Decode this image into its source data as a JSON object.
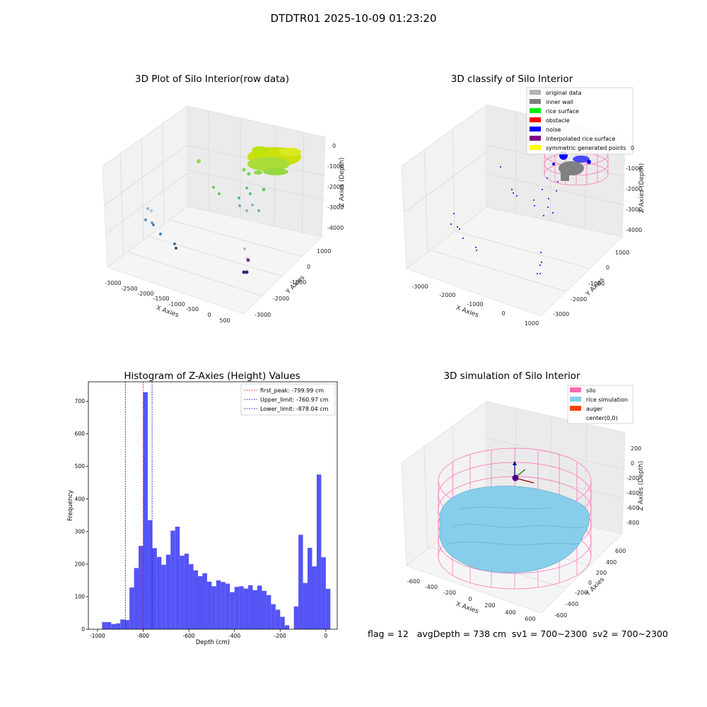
{
  "figure": {
    "title": "DTDTR01 2025-10-09 01:23:20",
    "stats_text": "flag = 12   avgDepth = 738 cm  sv1 = 700~2300  sv2 = 700~2300"
  },
  "panels": {
    "raw": {
      "title": "3D Plot of Silo Interior(row data)",
      "xlabel": "X Axies",
      "ylabel": "Y Axies",
      "zlabel": "Z Axies (Depth)",
      "xticks": [
        "-3000",
        "-2500",
        "-2000",
        "-1500",
        "-1000",
        "-500",
        "0",
        "500"
      ],
      "yticks": [
        "1000",
        "0",
        "-1000",
        "-2000",
        "-3000"
      ],
      "zticks": [
        "0",
        "-1000",
        "-2000",
        "-3000",
        "-4000"
      ]
    },
    "classify": {
      "title": "3D classify of Silo Interior",
      "xlabel": "X Axies",
      "ylabel": "Y Axies",
      "zlabel": "Z Axies (Depth)",
      "xticks": [
        "-3000",
        "-2000",
        "-1000",
        "0",
        "1000"
      ],
      "yticks": [
        "1000",
        "0",
        "-1000",
        "-2000",
        "-3000"
      ],
      "zticks": [
        "0",
        "-1000",
        "-2000",
        "-3000",
        "-4000"
      ],
      "legend": [
        {
          "label": "original data",
          "color": "#b3b3b3"
        },
        {
          "label": "inner wall",
          "color": "#808080"
        },
        {
          "label": "rice surface",
          "color": "#00ee00"
        },
        {
          "label": "obstacle",
          "color": "#ff0000"
        },
        {
          "label": "noise",
          "color": "#0000ff"
        },
        {
          "label": "interpolated rice surface",
          "color": "#800080"
        },
        {
          "label": "symmetric generated points",
          "color": "#ffff00"
        }
      ]
    },
    "simulation": {
      "title": "3D simulation of Silo Interior",
      "xlabel": "X Axies",
      "ylabel": "Y Axies",
      "zlabel": "Z Axies (Depth)",
      "xticks": [
        "-600",
        "-400",
        "-200",
        "0",
        "200",
        "400",
        "600"
      ],
      "yticks": [
        "600",
        "400",
        "200",
        "0",
        "-200",
        "-400",
        "-600"
      ],
      "zticks": [
        "200",
        "0",
        "-200",
        "-400",
        "-600",
        "-800"
      ],
      "legend": [
        {
          "label": "silo",
          "color": "#ff69b4"
        },
        {
          "label": "rice simulation",
          "color": "#87ceeb"
        },
        {
          "label": "auger",
          "color": "#ff4500"
        },
        {
          "label": "center(0,0)",
          "color": "none"
        }
      ]
    }
  },
  "chart_data": {
    "type": "bar",
    "title": "Histogram of Z-Axies (Height) Values",
    "xlabel": "Depth (cm)",
    "ylabel": "Frequency",
    "xlim": [
      -1040,
      50
    ],
    "ylim": [
      0,
      760
    ],
    "bin_width": 20,
    "bar_color": "#4b4bf5",
    "bins": [
      {
        "x": -970,
        "value": 22
      },
      {
        "x": -950,
        "value": 22
      },
      {
        "x": -930,
        "value": 16
      },
      {
        "x": -910,
        "value": 18
      },
      {
        "x": -890,
        "value": 30
      },
      {
        "x": -870,
        "value": 28
      },
      {
        "x": -850,
        "value": 128
      },
      {
        "x": -830,
        "value": 188
      },
      {
        "x": -810,
        "value": 256
      },
      {
        "x": -790,
        "value": 728
      },
      {
        "x": -770,
        "value": 335
      },
      {
        "x": -750,
        "value": 249
      },
      {
        "x": -730,
        "value": 222
      },
      {
        "x": -710,
        "value": 198
      },
      {
        "x": -690,
        "value": 229
      },
      {
        "x": -670,
        "value": 303
      },
      {
        "x": -650,
        "value": 315
      },
      {
        "x": -630,
        "value": 226
      },
      {
        "x": -610,
        "value": 232
      },
      {
        "x": -590,
        "value": 200
      },
      {
        "x": -570,
        "value": 181
      },
      {
        "x": -550,
        "value": 163
      },
      {
        "x": -530,
        "value": 172
      },
      {
        "x": -510,
        "value": 146
      },
      {
        "x": -490,
        "value": 132
      },
      {
        "x": -470,
        "value": 150
      },
      {
        "x": -450,
        "value": 145
      },
      {
        "x": -430,
        "value": 140
      },
      {
        "x": -410,
        "value": 114
      },
      {
        "x": -390,
        "value": 130
      },
      {
        "x": -370,
        "value": 132
      },
      {
        "x": -350,
        "value": 125
      },
      {
        "x": -330,
        "value": 135
      },
      {
        "x": -310,
        "value": 120
      },
      {
        "x": -290,
        "value": 134
      },
      {
        "x": -270,
        "value": 118
      },
      {
        "x": -250,
        "value": 105
      },
      {
        "x": -230,
        "value": 77
      },
      {
        "x": -210,
        "value": 60
      },
      {
        "x": -190,
        "value": 38
      },
      {
        "x": -170,
        "value": 12
      },
      {
        "x": -150,
        "value": 0
      },
      {
        "x": -130,
        "value": 70
      },
      {
        "x": -110,
        "value": 290
      },
      {
        "x": -90,
        "value": 142
      },
      {
        "x": -70,
        "value": 250
      },
      {
        "x": -50,
        "value": 193
      },
      {
        "x": -30,
        "value": 475
      },
      {
        "x": -10,
        "value": 221
      },
      {
        "x": 10,
        "value": 124
      }
    ],
    "xticks": [
      -1000,
      -800,
      -600,
      -400,
      -200,
      0
    ],
    "yticks": [
      0,
      100,
      200,
      300,
      400,
      500,
      600,
      700
    ],
    "vlines": [
      {
        "label": "first_peak: -799.99 cm",
        "x": -799.99,
        "color": "#ff0000"
      },
      {
        "label": "Upper_limit: -760.97 cm",
        "x": -760.97,
        "color": "#0000cc"
      },
      {
        "label": "Lower_limit: -878.04 cm",
        "x": -878.04,
        "color": "#0000cc"
      }
    ],
    "legend_position": "upper right"
  }
}
